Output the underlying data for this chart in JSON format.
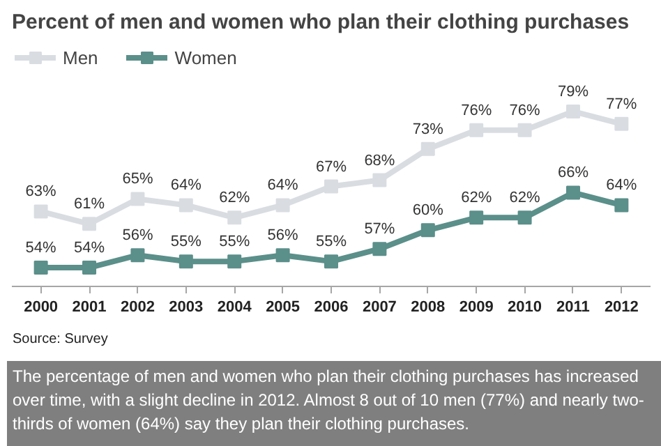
{
  "chart_data": {
    "type": "line",
    "title": "Percent of men and women who plan their clothing purchases",
    "categories": [
      "2000",
      "2001",
      "2002",
      "2003",
      "2004",
      "2005",
      "2006",
      "2007",
      "2008",
      "2009",
      "2010",
      "2011",
      "2012"
    ],
    "series": [
      {
        "name": "Men",
        "color": "#d9dde2",
        "values": [
          63,
          61,
          65,
          64,
          62,
          64,
          67,
          68,
          73,
          76,
          76,
          79,
          77
        ],
        "value_labels": [
          "63%",
          "61%",
          "65%",
          "64%",
          "62%",
          "64%",
          "67%",
          "68%",
          "73%",
          "76%",
          "76%",
          "79%",
          "77%"
        ]
      },
      {
        "name": "Women",
        "color": "#5b8f8a",
        "values": [
          54,
          54,
          56,
          55,
          55,
          56,
          55,
          57,
          60,
          62,
          62,
          66,
          64
        ],
        "value_labels": [
          "54%",
          "54%",
          "56%",
          "55%",
          "55%",
          "56%",
          "55%",
          "57%",
          "60%",
          "62%",
          "62%",
          "66%",
          "64%"
        ]
      }
    ],
    "marker": "square",
    "legend": "top left",
    "grid": false,
    "annotations": [
      "Source: Survey",
      "The percentage of men and women who plan their clothing purchases has increased over time, with a slight decline in 2012.  Almost 8 out of 10 men (77%) and nearly two-thirds of women (64%) say they plan their clothing purchases."
    ]
  }
}
